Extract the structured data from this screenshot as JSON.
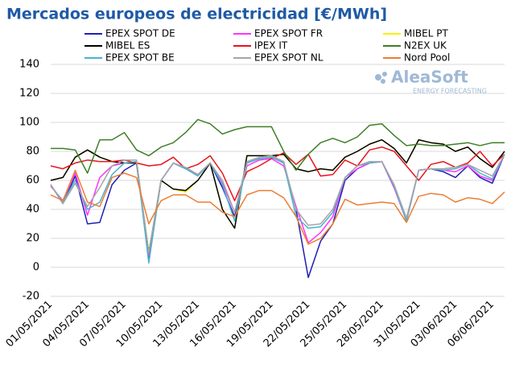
{
  "chart_data": {
    "type": "line",
    "title": "Mercados europeos de electricidad [€/MWh]",
    "annotations": [
      "AleaSoft",
      "ENERGY FORECASTING"
    ],
    "categories": [
      "01/05/2021",
      null,
      null,
      "04/05/2021",
      null,
      null,
      "07/05/2021",
      null,
      null,
      "10/05/2021",
      null,
      null,
      "13/05/2021",
      null,
      null,
      "16/05/2021",
      null,
      null,
      "19/05/2021",
      null,
      null,
      "22/05/2021",
      null,
      null,
      "25/05/2021",
      null,
      null,
      "28/05/2021",
      null,
      null,
      "31/05/2021",
      null,
      null,
      "03/06/2021",
      null,
      null,
      "06/06/2021",
      null
    ],
    "ylim": [
      -20,
      140
    ],
    "yticks": [
      -20,
      0,
      20,
      40,
      60,
      80,
      100,
      120,
      140
    ],
    "grid": true,
    "series": [
      {
        "name": "EPEX SPOT DE",
        "color": "#1f1fb4",
        "values": [
          57,
          44,
          63,
          30,
          31,
          57,
          67,
          72,
          6,
          60,
          72,
          68,
          64,
          72,
          55,
          35,
          72,
          75,
          76,
          72,
          40,
          -7,
          18,
          30,
          60,
          68,
          72,
          73,
          55,
          33,
          67,
          68,
          66,
          62,
          70,
          62,
          58,
          78
        ]
      },
      {
        "name": "EPEX SPOT FR",
        "color": "#ff33ff",
        "values": [
          56,
          46,
          65,
          36,
          62,
          70,
          72,
          72,
          8,
          60,
          72,
          68,
          64,
          72,
          58,
          38,
          70,
          74,
          75,
          70,
          42,
          17,
          24,
          35,
          62,
          68,
          72,
          73,
          55,
          32,
          67,
          68,
          67,
          66,
          70,
          63,
          60,
          78
        ]
      },
      {
        "name": "MIBEL PT",
        "color": "#ffee00",
        "values": [
          60,
          62,
          76,
          81,
          76,
          73,
          72,
          72,
          10,
          60,
          54,
          52,
          60,
          72,
          40,
          27,
          77,
          77,
          77,
          78,
          68,
          66,
          68,
          67,
          76,
          80,
          85,
          88,
          82,
          72,
          88,
          86,
          85,
          80,
          83,
          75,
          69,
          80
        ]
      },
      {
        "name": "MIBEL ES",
        "color": "#000000",
        "values": [
          60,
          62,
          76,
          81,
          76,
          73,
          72,
          72,
          10,
          60,
          54,
          53,
          60,
          72,
          40,
          27,
          77,
          77,
          77,
          78,
          68,
          66,
          68,
          67,
          76,
          80,
          85,
          88,
          82,
          72,
          88,
          86,
          85,
          80,
          83,
          75,
          69,
          80
        ]
      },
      {
        "name": "IPEX IT",
        "color": "#e8141b",
        "values": [
          70,
          68,
          72,
          74,
          73,
          73,
          74,
          72,
          70,
          71,
          76,
          68,
          71,
          77,
          65,
          46,
          66,
          70,
          75,
          79,
          71,
          78,
          63,
          64,
          74,
          70,
          81,
          83,
          80,
          70,
          60,
          71,
          73,
          69,
          72,
          80,
          70,
          78
        ]
      },
      {
        "name": "N2EX UK",
        "color": "#3d7f26",
        "values": [
          82,
          82,
          81,
          65,
          88,
          88,
          93,
          81,
          77,
          83,
          86,
          93,
          102,
          99,
          92,
          95,
          97,
          97,
          97,
          80,
          67,
          78,
          86,
          89,
          86,
          90,
          98,
          99,
          91,
          84,
          85,
          84,
          84,
          85,
          86,
          84,
          86,
          86
        ]
      },
      {
        "name": "EPEX SPOT BE",
        "color": "#4bb3d0",
        "values": [
          57,
          45,
          60,
          40,
          45,
          64,
          72,
          73,
          3,
          60,
          72,
          68,
          63,
          72,
          57,
          32,
          72,
          75,
          76,
          72,
          35,
          27,
          28,
          38,
          62,
          70,
          72,
          73,
          56,
          32,
          67,
          68,
          67,
          68,
          71,
          65,
          61,
          78
        ]
      },
      {
        "name": "EPEX SPOT NL",
        "color": "#a6a6a6",
        "values": [
          57,
          44,
          58,
          42,
          55,
          70,
          74,
          74,
          10,
          60,
          72,
          69,
          64,
          72,
          60,
          38,
          73,
          76,
          77,
          73,
          40,
          29,
          30,
          40,
          62,
          70,
          73,
          73,
          57,
          34,
          67,
          68,
          68,
          69,
          71,
          67,
          63,
          78
        ]
      },
      {
        "name": "Nord Pool",
        "color": "#ed7d31",
        "values": [
          50,
          46,
          67,
          45,
          42,
          62,
          65,
          62,
          30,
          46,
          50,
          50,
          45,
          45,
          38,
          35,
          50,
          53,
          53,
          48,
          35,
          16,
          20,
          30,
          47,
          43,
          44,
          45,
          44,
          31,
          49,
          51,
          50,
          45,
          48,
          47,
          44,
          52
        ]
      }
    ]
  }
}
